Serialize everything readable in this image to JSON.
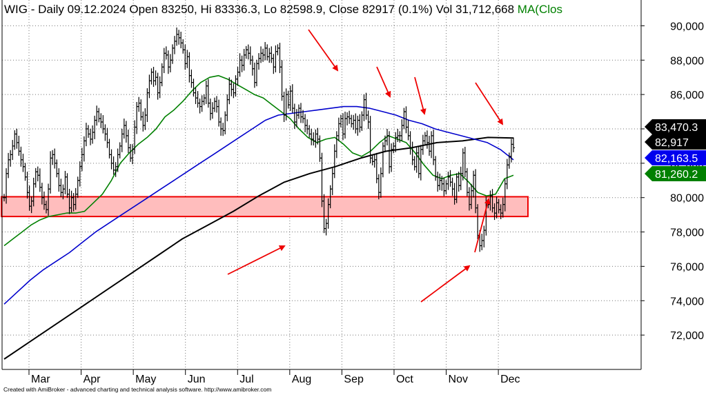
{
  "header": {
    "symbol": "WIG",
    "info": " - Daily 09.12.2024 Open 83250, Hi 83336.3, Lo 82598.9, Close 82917 (0.1%) Vol 31,712,668 ",
    "ma_label": "MA(Clos"
  },
  "footer": {
    "credit": "Created with AmiBroker - advanced charting and technical analysis software. http://www.amibroker.com"
  },
  "colors": {
    "background": "#ffffff",
    "grid": "#000000",
    "price_bars": "#000000",
    "ma_short": "#008000",
    "ma_mid": "#0000cc",
    "ma_long": "#000000",
    "support_zone_fill": "#ffbdbd",
    "support_zone_border": "#ee0000",
    "arrows": "#ee0000"
  },
  "chart_data": {
    "type": "line",
    "ylim": [
      70000,
      91500
    ],
    "grid": "dotted",
    "y_ticks": [
      72000,
      74000,
      76000,
      78000,
      80000,
      82000,
      84000,
      86000,
      88000,
      90000
    ],
    "y_tick_labels": [
      "72,000",
      "74,000",
      "76,000",
      "78,000",
      "80,000",
      "82,000",
      "84,000",
      "86,000",
      "88,000",
      "90,000"
    ],
    "x_month_labels": [
      "Mar",
      "Apr",
      "May",
      "Jun",
      "Jul",
      "Aug",
      "Sep",
      "Oct",
      "Nov",
      "Dec"
    ],
    "price_series": {
      "name": "WIG",
      "close": [
        80000,
        81400,
        82200,
        82500,
        83000,
        83700,
        83200,
        82700,
        82200,
        81800,
        81200,
        80300,
        79500,
        79800,
        80800,
        81500,
        81300,
        80600,
        80000,
        79600,
        79300,
        80500,
        82300,
        82500,
        82000,
        81400,
        80700,
        80300,
        80500,
        81200,
        80200,
        79400,
        80000,
        79600,
        80200,
        81000,
        81800,
        82500,
        83300,
        84000,
        83700,
        83400,
        83800,
        84500,
        85000,
        84600,
        84400,
        84000,
        83700,
        83200,
        82500,
        82000,
        81600,
        81800,
        82500,
        83000,
        83700,
        84200,
        83600,
        82900,
        82300,
        82800,
        84100,
        85300,
        85500,
        84700,
        84200,
        84800,
        86100,
        86800,
        87300,
        86800,
        87000,
        86100,
        86700,
        87600,
        88400,
        88300,
        87600,
        88000,
        88700,
        89100,
        89500,
        89300,
        89000,
        88600,
        87800,
        88200,
        87100,
        86700,
        86100,
        85800,
        85500,
        85300,
        85600,
        85800,
        86500,
        85500,
        84900,
        85200,
        85600,
        85300,
        84400,
        84000,
        83900,
        84800,
        85700,
        86600,
        86300,
        86100,
        86900,
        87300,
        88000,
        87700,
        88300,
        88600,
        88400,
        88000,
        87500,
        86700,
        87800,
        88100,
        88400,
        88300,
        88700,
        88200,
        88400,
        88100,
        87600,
        88500,
        88700,
        87600,
        85900,
        84800,
        86000,
        85400,
        86200,
        85200,
        84400,
        84800,
        85200,
        84700,
        84600,
        84200,
        84000,
        83700,
        83400,
        83300,
        83700,
        83400,
        82300,
        79800,
        78200,
        78500,
        79600,
        80500,
        81400,
        82700,
        83600,
        84300,
        84600,
        83700,
        84600,
        84700,
        84600,
        84300,
        84500,
        84000,
        84500,
        84100,
        84800,
        85700,
        84800,
        84400,
        82300,
        82100,
        82200,
        81100,
        80300,
        81400,
        83000,
        83300,
        83600,
        81800,
        82800,
        83000,
        83500,
        83600,
        83600,
        84200,
        85000,
        84100,
        83600,
        82900,
        82200,
        81800,
        82600,
        81400,
        82800,
        83300,
        83600,
        83200,
        82700,
        83600,
        82200,
        81200,
        80700,
        81000,
        80800,
        80400,
        80800,
        81200,
        80900,
        80500,
        79900,
        81200,
        80700,
        81400,
        82600,
        81500,
        80300,
        79600,
        80400,
        81300,
        79400,
        77800,
        77200,
        77500,
        78100,
        79700,
        79600,
        80100,
        79400,
        79100,
        79700,
        79300,
        79100,
        79600,
        80800,
        81900,
        82400,
        83100,
        82900
      ]
    },
    "moving_averages": [
      {
        "period": 20,
        "last_value": 81260.2,
        "label": "81,260.2"
      },
      {
        "period": 50,
        "last_value": 82163.5,
        "label": "82,163.5"
      },
      {
        "period": 200,
        "last_value": 83470.3,
        "label": "83,470.3"
      }
    ],
    "ma20": [
      77200,
      77600,
      78000,
      78400,
      78700,
      78900,
      79000,
      79100,
      79100,
      79200,
      79700,
      80200,
      81000,
      82000,
      82600,
      83100,
      83500,
      84000,
      84700,
      85100,
      85600,
      86200,
      86700,
      87000,
      87100,
      86900,
      86600,
      86300,
      86000,
      85800,
      85400,
      85000,
      84600,
      84000,
      83500,
      83200,
      83400,
      83500,
      83100,
      82600,
      82400,
      82700,
      83200,
      83600,
      83400,
      83200,
      82600,
      81900,
      81300,
      81100,
      81300,
      81400,
      80900,
      80300,
      80100,
      80200,
      81100,
      81300
    ],
    "ma50": [
      73800,
      74500,
      75200,
      75800,
      76300,
      76800,
      77400,
      78000,
      78500,
      79000,
      79500,
      80000,
      80500,
      81000,
      81500,
      82000,
      82500,
      83000,
      83500,
      84000,
      84500,
      84800,
      84900,
      85000,
      85100,
      85200,
      85300,
      85300,
      85200,
      85000,
      84800,
      84500,
      84300,
      84000,
      83800,
      83600,
      83400,
      83200,
      82800,
      82200
    ],
    "ma200": [
      70600,
      71600,
      72600,
      73600,
      74600,
      75600,
      76600,
      77600,
      78400,
      79200,
      80100,
      80900,
      81400,
      81800,
      82300,
      82700,
      82900,
      83200,
      83300,
      83500,
      83470
    ],
    "support_zone": {
      "low": 78900,
      "high": 80050
    },
    "last_close_label": "82,917",
    "last_close": 82917
  }
}
